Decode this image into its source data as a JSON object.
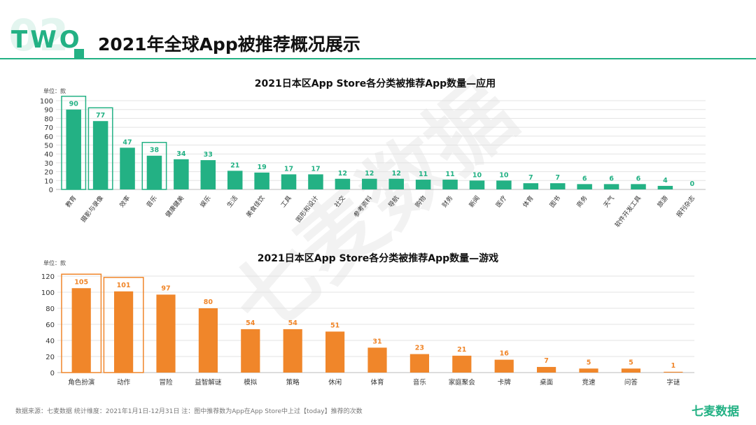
{
  "header": {
    "badge_number": "02",
    "badge_word": "TWO",
    "title": "2021年全球App被推荐概况展示"
  },
  "watermark": "七麦数据",
  "colors": {
    "app_bar": "#23b184",
    "app_label": "#23b184",
    "game_bar": "#f0862a",
    "game_label": "#f0862a",
    "header_line": "#23b184",
    "grid": "#e3e3e3"
  },
  "chart_data": [
    {
      "type": "bar",
      "title": "2021日本区App Store各分类被推荐App数量—应用",
      "unit_label": "单位：款",
      "categories": [
        "教育",
        "摄影与录像",
        "效率",
        "音乐",
        "健康健美",
        "娱乐",
        "生活",
        "美食佳饮",
        "工具",
        "图形和设计",
        "社交",
        "参考资料",
        "导航",
        "购物",
        "财务",
        "新闻",
        "医疗",
        "体育",
        "图书",
        "商务",
        "天气",
        "软件开发工具",
        "旅游",
        "报刊杂志"
      ],
      "values": [
        90,
        77,
        47,
        38,
        34,
        33,
        21,
        19,
        17,
        17,
        12,
        12,
        12,
        11,
        11,
        10,
        10,
        7,
        7,
        6,
        6,
        6,
        4,
        0
      ],
      "highlighted": [
        "教育",
        "摄影与录像",
        "音乐"
      ],
      "yticks": [
        0,
        10,
        20,
        30,
        40,
        50,
        60,
        70,
        80,
        90,
        100
      ],
      "ylim": [
        0,
        100
      ],
      "grid": true
    },
    {
      "type": "bar",
      "title": "2021日本区App Store各分类被推荐App数量—游戏",
      "unit_label": "单位：款",
      "categories": [
        "角色扮演",
        "动作",
        "冒险",
        "益智解谜",
        "模拟",
        "策略",
        "休闲",
        "体育",
        "音乐",
        "家庭聚会",
        "卡牌",
        "桌面",
        "竞速",
        "问答",
        "字谜"
      ],
      "values": [
        105,
        101,
        97,
        80,
        54,
        54,
        51,
        31,
        23,
        21,
        16,
        7,
        5,
        5,
        1
      ],
      "highlighted": [
        "角色扮演",
        "动作"
      ],
      "yticks": [
        0,
        20,
        40,
        60,
        80,
        100,
        120
      ],
      "ylim": [
        0,
        120
      ],
      "grid": true
    }
  ],
  "footer": {
    "source": "数据来源：七麦数据  统计维度：2021年1月1日-12月31日  注：图中推荐数为App在App Store中上过【today】推荐的次数",
    "brand": "七麦数据"
  }
}
